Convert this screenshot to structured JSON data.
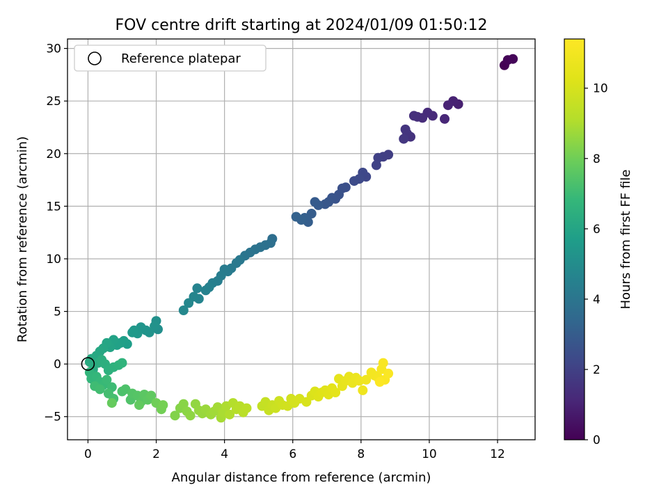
{
  "chart_data": {
    "type": "scatter",
    "title": "FOV centre drift starting at 2024/01/09 01:50:12",
    "xlabel": "Angular distance from reference (arcmin)",
    "ylabel": "Rotation from reference (arcmin)",
    "xlim": [
      -0.6,
      13.1
    ],
    "ylim": [
      -7.2,
      30.9
    ],
    "xticks": [
      0,
      2,
      4,
      6,
      8,
      10,
      12
    ],
    "yticks": [
      -5,
      0,
      5,
      10,
      15,
      20,
      25,
      30
    ],
    "grid": true,
    "legend": {
      "location": "top-left",
      "entries": [
        "Reference platepar"
      ]
    },
    "reference_point": {
      "x": 0,
      "y": 0
    },
    "colorbar": {
      "label": "Hours from first FF file",
      "colormap": "viridis",
      "range": [
        0,
        11.4
      ],
      "ticks": [
        0,
        2,
        4,
        6,
        8,
        10
      ]
    },
    "series": [
      {
        "columns": [
          "x",
          "y",
          "hours"
        ],
        "points": [
          [
            12.2,
            28.4,
            0.0
          ],
          [
            12.3,
            28.9,
            0.1
          ],
          [
            12.45,
            29.0,
            0.15
          ],
          [
            10.85,
            24.7,
            0.9
          ],
          [
            10.7,
            25.0,
            0.95
          ],
          [
            10.55,
            24.6,
            1.0
          ],
          [
            10.45,
            23.3,
            1.1
          ],
          [
            10.1,
            23.6,
            1.2
          ],
          [
            9.95,
            23.9,
            1.25
          ],
          [
            9.8,
            23.4,
            1.3
          ],
          [
            9.65,
            23.5,
            1.35
          ],
          [
            9.55,
            23.6,
            1.4
          ],
          [
            9.45,
            21.6,
            1.5
          ],
          [
            9.35,
            21.9,
            1.55
          ],
          [
            9.3,
            22.3,
            1.6
          ],
          [
            9.25,
            21.4,
            1.65
          ],
          [
            8.8,
            19.9,
            1.9
          ],
          [
            8.65,
            19.7,
            1.95
          ],
          [
            8.5,
            19.6,
            2.0
          ],
          [
            8.45,
            18.9,
            2.05
          ],
          [
            8.15,
            17.8,
            2.2
          ],
          [
            8.05,
            18.2,
            2.25
          ],
          [
            7.95,
            17.6,
            2.3
          ],
          [
            7.8,
            17.4,
            2.35
          ],
          [
            7.55,
            16.8,
            2.5
          ],
          [
            7.45,
            16.7,
            2.55
          ],
          [
            7.35,
            16.1,
            2.6
          ],
          [
            7.25,
            15.7,
            2.65
          ],
          [
            7.15,
            15.8,
            2.7
          ],
          [
            7.05,
            15.4,
            2.75
          ],
          [
            6.95,
            15.2,
            2.8
          ],
          [
            6.75,
            15.1,
            2.9
          ],
          [
            6.65,
            15.4,
            2.95
          ],
          [
            6.55,
            14.3,
            3.0
          ],
          [
            6.45,
            13.5,
            3.05
          ],
          [
            6.35,
            13.9,
            3.1
          ],
          [
            6.25,
            13.7,
            3.15
          ],
          [
            6.1,
            14.0,
            3.2
          ],
          [
            5.4,
            11.9,
            3.7
          ],
          [
            5.35,
            11.5,
            3.75
          ],
          [
            5.2,
            11.3,
            3.8
          ],
          [
            5.05,
            11.1,
            3.85
          ],
          [
            4.9,
            10.9,
            3.9
          ],
          [
            4.75,
            10.6,
            3.95
          ],
          [
            4.6,
            10.3,
            4.0
          ],
          [
            4.45,
            9.9,
            4.1
          ],
          [
            4.35,
            9.6,
            4.15
          ],
          [
            4.2,
            9.1,
            4.2
          ],
          [
            4.1,
            8.8,
            4.25
          ],
          [
            4.0,
            9.0,
            4.3
          ],
          [
            3.9,
            8.4,
            4.35
          ],
          [
            3.8,
            7.9,
            4.4
          ],
          [
            3.65,
            7.7,
            4.45
          ],
          [
            3.55,
            7.3,
            4.5
          ],
          [
            3.45,
            7.0,
            4.55
          ],
          [
            3.2,
            7.2,
            4.6
          ],
          [
            3.25,
            6.2,
            4.65
          ],
          [
            3.1,
            6.4,
            4.7
          ],
          [
            2.95,
            5.8,
            4.75
          ],
          [
            2.8,
            5.1,
            4.8
          ],
          [
            2.05,
            3.3,
            5.1
          ],
          [
            2.0,
            4.1,
            5.15
          ],
          [
            1.95,
            3.6,
            5.2
          ],
          [
            1.8,
            3.0,
            5.25
          ],
          [
            1.7,
            3.2,
            5.3
          ],
          [
            1.55,
            3.5,
            5.35
          ],
          [
            1.45,
            2.9,
            5.4
          ],
          [
            1.35,
            3.2,
            5.45
          ],
          [
            1.3,
            3.0,
            5.5
          ],
          [
            1.15,
            1.9,
            5.7
          ],
          [
            1.05,
            2.2,
            5.75
          ],
          [
            0.95,
            2.0,
            5.8
          ],
          [
            0.85,
            1.8,
            5.85
          ],
          [
            0.75,
            2.3,
            5.9
          ],
          [
            0.65,
            1.6,
            5.95
          ],
          [
            0.55,
            2.0,
            6.0
          ],
          [
            0.45,
            1.5,
            6.05
          ],
          [
            0.35,
            1.2,
            6.1
          ],
          [
            0.25,
            0.8,
            6.15
          ],
          [
            0.1,
            0.5,
            6.2
          ],
          [
            0.05,
            0.2,
            6.25
          ],
          [
            0.15,
            -0.5,
            6.3
          ],
          [
            0.3,
            0.1,
            6.35
          ],
          [
            0.4,
            0.4,
            6.4
          ],
          [
            0.5,
            0.0,
            6.45
          ],
          [
            0.6,
            -0.6,
            6.5
          ],
          [
            0.75,
            -0.3,
            6.55
          ],
          [
            0.9,
            -0.1,
            6.6
          ],
          [
            1.0,
            0.1,
            6.65
          ],
          [
            0.05,
            -0.8,
            6.7
          ],
          [
            0.1,
            -1.4,
            6.75
          ],
          [
            0.25,
            -1.2,
            6.8
          ],
          [
            0.35,
            -1.7,
            6.85
          ],
          [
            0.45,
            -2.0,
            6.9
          ],
          [
            0.55,
            -1.5,
            6.95
          ],
          [
            0.7,
            -2.2,
            7.0
          ],
          [
            0.2,
            -2.1,
            7.05
          ],
          [
            0.35,
            -2.4,
            7.1
          ],
          [
            0.6,
            -2.8,
            7.15
          ],
          [
            0.75,
            -3.3,
            7.2
          ],
          [
            1.0,
            -2.6,
            7.3
          ],
          [
            1.1,
            -2.4,
            7.35
          ],
          [
            1.25,
            -3.4,
            7.4
          ],
          [
            1.3,
            -2.8,
            7.45
          ],
          [
            1.45,
            -3.0,
            7.5
          ],
          [
            1.55,
            -3.6,
            7.55
          ],
          [
            1.65,
            -2.9,
            7.6
          ],
          [
            1.75,
            -3.4,
            7.65
          ],
          [
            1.85,
            -3.0,
            7.7
          ],
          [
            1.5,
            -3.9,
            7.75
          ],
          [
            0.7,
            -3.7,
            7.8
          ],
          [
            2.0,
            -3.7,
            8.0
          ],
          [
            2.15,
            -4.3,
            8.05
          ],
          [
            2.2,
            -3.9,
            8.1
          ],
          [
            2.55,
            -4.9,
            8.3
          ],
          [
            2.7,
            -4.2,
            8.35
          ],
          [
            2.8,
            -3.8,
            8.4
          ],
          [
            2.9,
            -4.5,
            8.45
          ],
          [
            3.0,
            -4.9,
            8.5
          ],
          [
            3.15,
            -3.8,
            8.55
          ],
          [
            3.25,
            -4.4,
            8.6
          ],
          [
            3.35,
            -4.7,
            8.65
          ],
          [
            3.45,
            -4.3,
            8.7
          ],
          [
            3.6,
            -4.8,
            8.75
          ],
          [
            3.7,
            -4.5,
            8.8
          ],
          [
            3.8,
            -4.1,
            8.85
          ],
          [
            3.9,
            -5.1,
            8.9
          ],
          [
            3.95,
            -4.6,
            8.95
          ],
          [
            4.05,
            -4.0,
            9.0
          ],
          [
            4.15,
            -4.8,
            9.05
          ],
          [
            4.25,
            -3.7,
            9.1
          ],
          [
            4.35,
            -4.3,
            9.15
          ],
          [
            4.45,
            -4.0,
            9.2
          ],
          [
            4.55,
            -4.6,
            9.25
          ],
          [
            4.65,
            -4.2,
            9.3
          ],
          [
            5.1,
            -4.0,
            9.5
          ],
          [
            5.2,
            -3.6,
            9.55
          ],
          [
            5.3,
            -4.4,
            9.6
          ],
          [
            5.4,
            -3.9,
            9.65
          ],
          [
            5.5,
            -4.2,
            9.7
          ],
          [
            5.6,
            -3.5,
            9.75
          ],
          [
            5.7,
            -3.9,
            9.8
          ],
          [
            5.85,
            -4.0,
            9.85
          ],
          [
            5.95,
            -3.3,
            9.9
          ],
          [
            6.05,
            -3.7,
            9.95
          ],
          [
            6.2,
            -3.3,
            10.0
          ],
          [
            6.4,
            -3.6,
            10.05
          ],
          [
            6.55,
            -3.0,
            10.1
          ],
          [
            6.65,
            -2.6,
            10.15
          ],
          [
            6.75,
            -3.1,
            10.2
          ],
          [
            6.85,
            -2.7,
            10.25
          ],
          [
            6.95,
            -2.5,
            10.3
          ],
          [
            7.05,
            -2.9,
            10.35
          ],
          [
            7.15,
            -2.3,
            10.4
          ],
          [
            7.25,
            -2.7,
            10.45
          ],
          [
            7.35,
            -1.4,
            10.5
          ],
          [
            7.45,
            -2.1,
            10.55
          ],
          [
            7.55,
            -1.6,
            10.6
          ],
          [
            7.65,
            -1.2,
            10.65
          ],
          [
            7.75,
            -1.8,
            10.7
          ],
          [
            7.85,
            -1.3,
            10.75
          ],
          [
            7.95,
            -1.6,
            10.8
          ],
          [
            8.05,
            -2.5,
            10.85
          ],
          [
            8.15,
            -1.5,
            10.9
          ],
          [
            8.3,
            -0.8,
            11.0
          ],
          [
            8.4,
            -1.1,
            11.05
          ],
          [
            8.5,
            -1.3,
            11.1
          ],
          [
            8.6,
            -0.5,
            11.15
          ],
          [
            8.65,
            0.1,
            11.2
          ],
          [
            8.7,
            -1.5,
            11.25
          ],
          [
            8.8,
            -0.9,
            11.3
          ],
          [
            8.55,
            -1.7,
            11.35
          ]
        ]
      }
    ]
  }
}
